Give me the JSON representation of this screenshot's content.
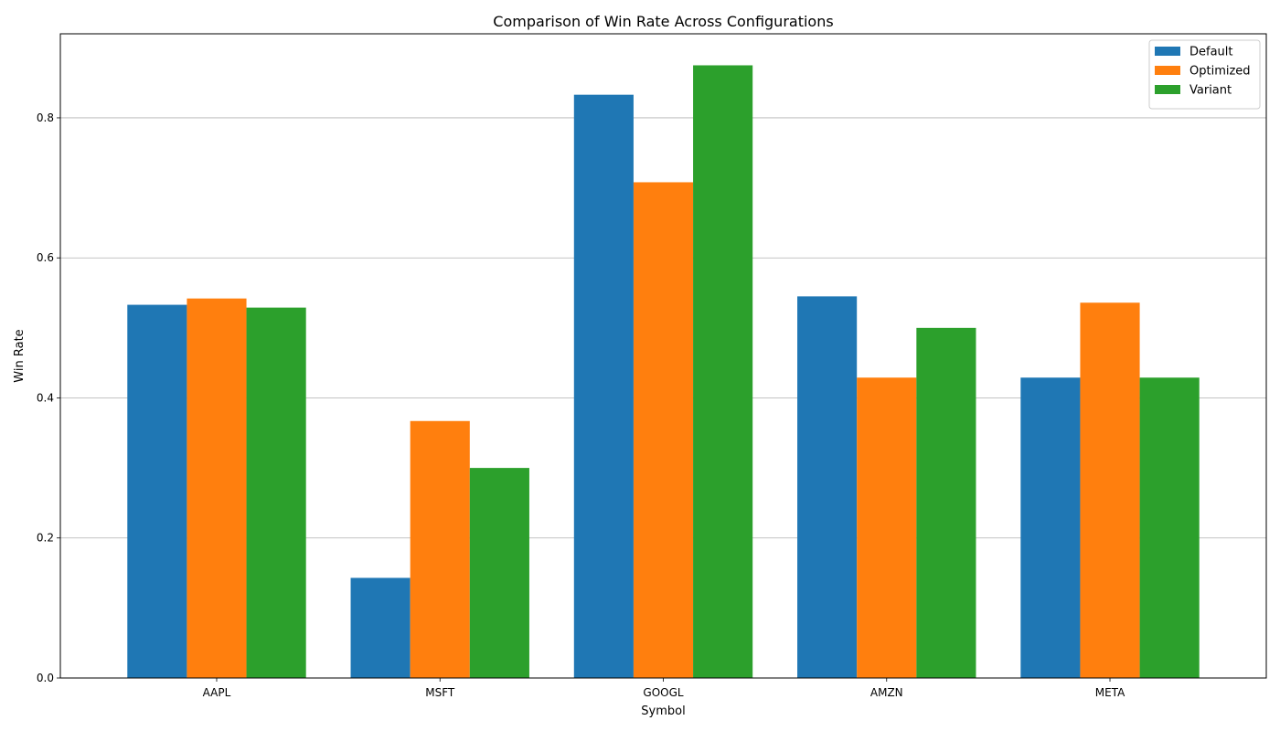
{
  "chart_data": {
    "type": "bar",
    "title": "Comparison of Win Rate Across Configurations",
    "xlabel": "Symbol",
    "ylabel": "Win Rate",
    "categories": [
      "AAPL",
      "MSFT",
      "GOOGL",
      "AMZN",
      "META"
    ],
    "series": [
      {
        "name": "Default",
        "color": "#1f77b4",
        "values": [
          0.533,
          0.143,
          0.833,
          0.545,
          0.429
        ]
      },
      {
        "name": "Optimized",
        "color": "#ff7f0e",
        "values": [
          0.542,
          0.367,
          0.708,
          0.429,
          0.536
        ]
      },
      {
        "name": "Variant",
        "color": "#2ca02c",
        "values": [
          0.529,
          0.3,
          0.875,
          0.5,
          0.429
        ]
      }
    ],
    "ylim": [
      0,
      0.92
    ],
    "yticks": [
      "0.0",
      "0.2",
      "0.4",
      "0.6",
      "0.8"
    ],
    "grid": "horizontal",
    "legend_position": "top-right"
  }
}
